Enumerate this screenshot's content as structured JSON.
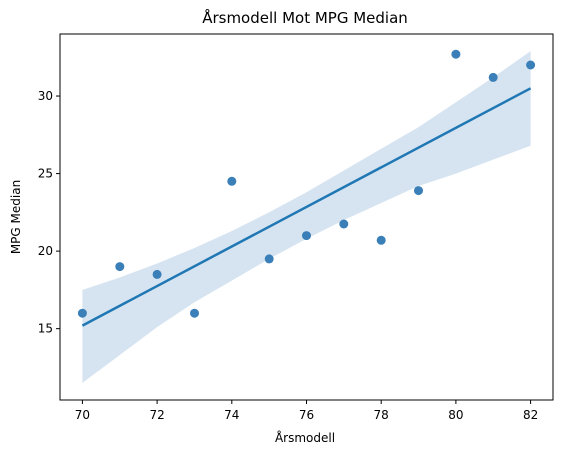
{
  "chart_data": {
    "type": "scatter",
    "title": "Årsmodell Mot MPG Median",
    "xlabel": "Årsmodell",
    "ylabel": "MPG Median",
    "xlim": [
      69.4,
      82.6
    ],
    "ylim": [
      10.4,
      34.0
    ],
    "xticks": [
      70,
      72,
      74,
      76,
      78,
      80,
      82
    ],
    "yticks": [
      15,
      20,
      25,
      30
    ],
    "grid": false,
    "legend": "none",
    "points": [
      {
        "x": 70,
        "y": 16.0
      },
      {
        "x": 71,
        "y": 19.0
      },
      {
        "x": 72,
        "y": 18.5
      },
      {
        "x": 73,
        "y": 16.0
      },
      {
        "x": 74,
        "y": 24.5
      },
      {
        "x": 75,
        "y": 19.5
      },
      {
        "x": 76,
        "y": 21.0
      },
      {
        "x": 77,
        "y": 21.75
      },
      {
        "x": 78,
        "y": 20.7
      },
      {
        "x": 79,
        "y": 23.9
      },
      {
        "x": 80,
        "y": 32.7
      },
      {
        "x": 81,
        "y": 31.2
      },
      {
        "x": 82,
        "y": 32.0
      }
    ],
    "regression": {
      "x": [
        70,
        82
      ],
      "y": [
        15.2,
        30.5
      ]
    },
    "confidence_band": {
      "x": [
        70,
        71,
        72,
        73,
        74,
        75,
        76,
        77,
        78,
        79,
        80,
        81,
        82
      ],
      "upper": [
        17.5,
        18.3,
        19.2,
        20.2,
        21.3,
        22.5,
        23.8,
        25.2,
        26.6,
        28.0,
        29.6,
        31.2,
        32.9
      ],
      "lower": [
        11.5,
        13.3,
        15.1,
        16.7,
        18.1,
        19.5,
        20.8,
        22.0,
        23.1,
        24.2,
        25.0,
        25.9,
        26.8
      ]
    },
    "colors": {
      "points": "#3a7fb8",
      "line": "#1f77b4",
      "band": "#d6e4f1"
    }
  }
}
